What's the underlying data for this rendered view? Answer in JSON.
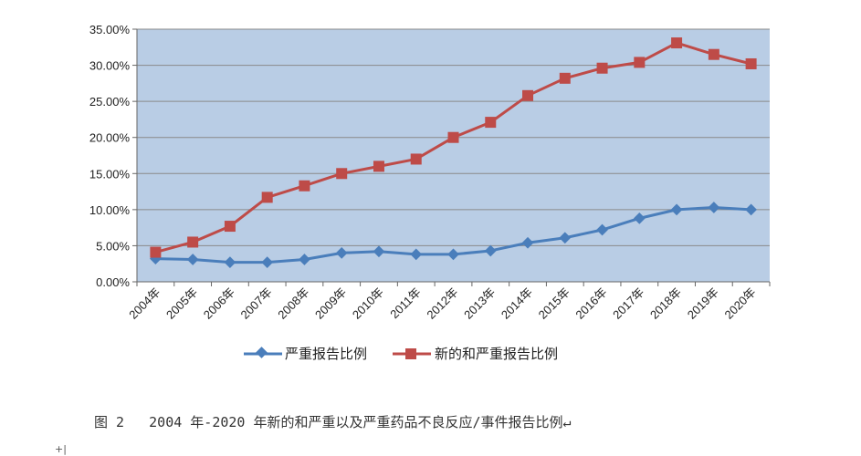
{
  "chart_data": {
    "type": "line",
    "categories": [
      "2004年",
      "2005年",
      "2006年",
      "2007年",
      "2008年",
      "2009年",
      "2010年",
      "2011年",
      "2012年",
      "2013年",
      "2014年",
      "2015年",
      "2016年",
      "2017年",
      "2018年",
      "2019年",
      "2020年"
    ],
    "series": [
      {
        "name": "严重报告比例",
        "color": "#4a7ebb",
        "marker": "diamond",
        "values": [
          3.2,
          3.1,
          2.7,
          2.7,
          3.1,
          4.0,
          4.2,
          3.8,
          3.8,
          4.3,
          5.4,
          6.1,
          7.2,
          8.8,
          10.0,
          10.3,
          10.0
        ]
      },
      {
        "name": "新的和严重报告比例",
        "color": "#be4b48",
        "marker": "square",
        "values": [
          4.1,
          5.5,
          7.7,
          11.7,
          13.3,
          15.0,
          16.0,
          17.0,
          20.0,
          22.1,
          25.8,
          28.2,
          29.6,
          30.4,
          33.1,
          31.5,
          30.2
        ]
      }
    ],
    "ylim": [
      0,
      35
    ],
    "yticks": [
      "0.00%",
      "5.00%",
      "10.00%",
      "15.00%",
      "20.00%",
      "25.00%",
      "30.00%",
      "35.00%"
    ],
    "plot_background": "#b9cde5",
    "grid": true,
    "legend_position": "bottom"
  },
  "caption": "图 2   2004 年-2020 年新的和严重以及严重药品不良反应/事件报告比例↵",
  "page_mark": "+|"
}
